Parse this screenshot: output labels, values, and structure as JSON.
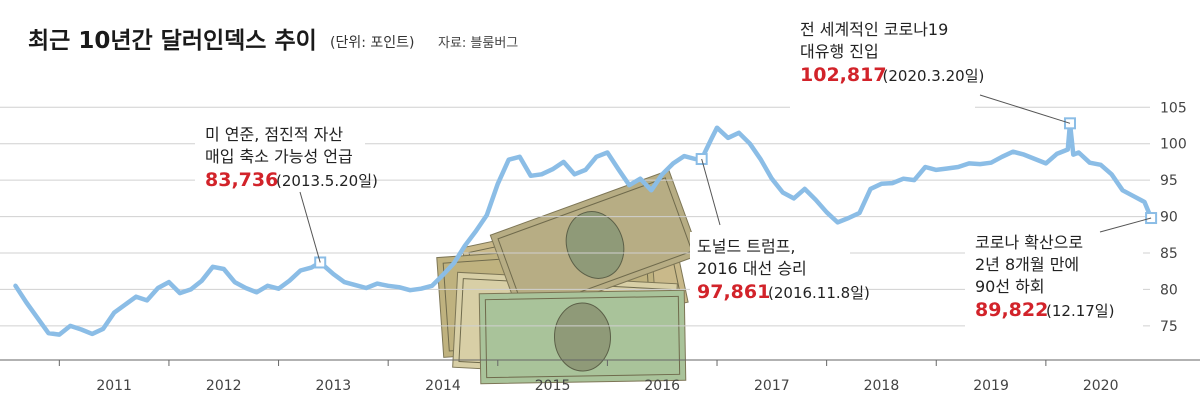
{
  "chart_data": {
    "type": "line",
    "title": "최근 10년간 달러인덱스 추이",
    "unit": "(단위: 포인트)",
    "source": "자료: 블룸버그",
    "xlabel": "",
    "ylabel": "",
    "xlim": [
      2010.55,
      2020.95
    ],
    "ylim": [
      71,
      106
    ],
    "grid": true,
    "y_ticks": [
      75,
      80,
      85,
      90,
      95,
      100,
      105
    ],
    "x_ticks": [
      "2011",
      "2012",
      "2013",
      "2014",
      "2015",
      "2016",
      "2017",
      "2018",
      "2019",
      "2020"
    ],
    "line_color": "#8bbde6",
    "accent_color": "#d2232a",
    "series": [
      {
        "x": [
          2010.6,
          2010.7,
          2010.8,
          2010.9,
          2011.0,
          2011.1,
          2011.2,
          2011.3,
          2011.4,
          2011.5,
          2011.6,
          2011.7,
          2011.8,
          2011.9,
          2012.0,
          2012.1,
          2012.2,
          2012.3,
          2012.4,
          2012.5,
          2012.6,
          2012.7,
          2012.8,
          2012.9,
          2013.0,
          2013.1,
          2013.2,
          2013.3,
          2013.38,
          2013.5,
          2013.6,
          2013.7,
          2013.8,
          2013.9,
          2014.0,
          2014.1,
          2014.2,
          2014.3,
          2014.4,
          2014.5,
          2014.6,
          2014.7,
          2014.8,
          2014.9,
          2015.0,
          2015.1,
          2015.2,
          2015.3,
          2015.4,
          2015.5,
          2015.6,
          2015.7,
          2015.8,
          2015.9,
          2016.0,
          2016.1,
          2016.2,
          2016.3,
          2016.4,
          2016.5,
          2016.6,
          2016.7,
          2016.8,
          2016.86,
          2016.95,
          2017.0,
          2017.1,
          2017.2,
          2017.3,
          2017.4,
          2017.5,
          2017.6,
          2017.7,
          2017.8,
          2017.9,
          2018.0,
          2018.1,
          2018.2,
          2018.3,
          2018.4,
          2018.5,
          2018.6,
          2018.7,
          2018.8,
          2018.9,
          2019.0,
          2019.1,
          2019.2,
          2019.3,
          2019.4,
          2019.5,
          2019.6,
          2019.7,
          2019.8,
          2019.9,
          2020.0,
          2020.1,
          2020.2,
          2020.22,
          2020.25,
          2020.3,
          2020.4,
          2020.5,
          2020.6,
          2020.7,
          2020.8,
          2020.9,
          2020.96
        ],
        "values": [
          80.5,
          78.2,
          76.1,
          74.0,
          73.8,
          75.0,
          74.5,
          73.9,
          74.6,
          76.8,
          77.9,
          79.0,
          78.5,
          80.2,
          81.0,
          79.5,
          80.0,
          81.2,
          83.1,
          82.8,
          81.0,
          80.2,
          79.6,
          80.5,
          80.1,
          81.2,
          82.6,
          83.0,
          83.7,
          82.1,
          81.0,
          80.6,
          80.2,
          80.8,
          80.5,
          80.3,
          79.9,
          80.1,
          80.5,
          82.0,
          83.6,
          86.0,
          88.0,
          90.2,
          94.5,
          97.8,
          98.2,
          95.6,
          95.8,
          96.5,
          97.5,
          95.8,
          96.4,
          98.2,
          98.8,
          96.5,
          94.3,
          95.2,
          93.6,
          95.8,
          97.3,
          98.3,
          97.9,
          97.9,
          100.7,
          102.2,
          100.8,
          101.5,
          100.0,
          97.8,
          95.2,
          93.3,
          92.5,
          93.8,
          92.3,
          90.6,
          89.2,
          89.8,
          90.5,
          93.8,
          94.5,
          94.6,
          95.2,
          95.0,
          96.8,
          96.4,
          96.6,
          96.8,
          97.3,
          97.2,
          97.4,
          98.2,
          98.9,
          98.5,
          97.9,
          97.3,
          98.6,
          99.2,
          102.8,
          98.5,
          98.8,
          97.4,
          97.1,
          95.8,
          93.6,
          92.8,
          92.0,
          89.8
        ]
      }
    ],
    "annotations": [
      {
        "lines": [
          "미 연준, 점진적 자산",
          "매입 축소 가능성 언급"
        ],
        "value": "83,736",
        "date": "(2013.5.20일)"
      },
      {
        "lines": [
          "도널드 트럼프,",
          "2016 대선 승리"
        ],
        "value": "97,861",
        "date": "(2016.11.8일)"
      },
      {
        "lines": [
          "전 세계적인 코로나19",
          "대유행 진입"
        ],
        "value": "102,817",
        "date": "(2020.3.20일)"
      },
      {
        "lines": [
          "코로나 확산으로",
          "2년 8개월 만에",
          "90선 하회"
        ],
        "value": "89,822",
        "date": "(12.17일)"
      }
    ]
  }
}
